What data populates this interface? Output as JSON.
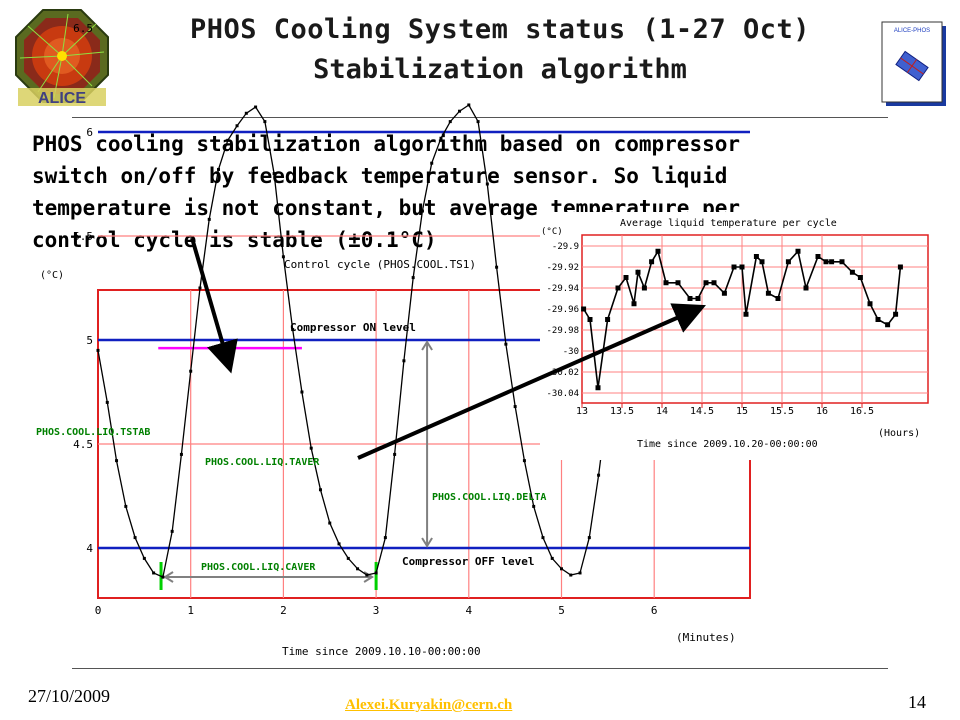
{
  "slide": {
    "title_line1": "PHOS Cooling System status (1-27 Oct)",
    "title_line2": "Stabilization algorithm",
    "body_lines": [
      "PHOS cooling stabilization algorithm based on compressor",
      "switch on/off by feedback temperature sensor. So liquid",
      "temperature is not constant, but average temperature per",
      "control cycle is stable (±0.1°C)"
    ],
    "footer_date": "27/10/2009",
    "footer_email": "Alexei.Kuryakin@cern.ch",
    "page_number": "14",
    "left_logo_text": "ALICE",
    "right_logo_text": "ALICE-PHOS"
  },
  "colors": {
    "main_frame": "#e02020",
    "grid_red": "#ff8080",
    "level_blue": "#1020c0",
    "tstab_magenta": "#ff00ff",
    "label_green": "#008000",
    "arrow": "#000000",
    "delta_gray": "#808080",
    "caver_green": "#00d000"
  },
  "chart_data": [
    {
      "type": "line",
      "title": "Control cycle (PHOS.COOL.TS1)",
      "ylabel": "(°C)",
      "xlabel": "Time since 2009.10.10-00:00:00",
      "xunit": "(Minutes)",
      "xlim": [
        0,
        7
      ],
      "ylim": [
        3.6,
        6.5
      ],
      "xticks": [
        "0",
        "1",
        "2",
        "3",
        "4",
        "5",
        "6"
      ],
      "yticks": [
        "4",
        "4.5",
        "5",
        "5.5",
        "6",
        "6.5"
      ],
      "levels": [
        {
          "name": "Compressor ON level",
          "value": 6
        },
        {
          "name": "Compressor OFF level",
          "value": 4
        },
        {
          "name": "PHOS.COOL.LIQ.TSTAB",
          "value": 5
        },
        {
          "name": "PHOS.COOL.LIQ.TAVER",
          "value": 4.98
        }
      ],
      "annotations": [
        "PHOS.COOL.LIQ.DELTA",
        "PHOS.COOL.LIQ.CAVER"
      ],
      "series": [
        {
          "x": [
            0,
            0.1,
            0.2,
            0.3,
            0.4,
            0.5,
            0.6,
            0.7,
            0.8,
            0.9,
            1.0,
            1.1,
            1.2,
            1.3,
            1.4,
            1.5,
            1.6,
            1.7,
            1.8,
            1.9,
            2.0,
            2.1,
            2.2,
            2.3,
            2.4,
            2.5,
            2.6,
            2.7,
            2.8,
            2.9,
            3.0,
            3.1,
            3.2,
            3.3,
            3.4,
            3.5,
            3.6,
            3.7,
            3.8,
            3.9,
            4.0,
            4.1,
            4.2,
            4.3,
            4.4,
            4.5,
            4.6,
            4.7,
            4.8,
            4.9,
            5.0,
            5.1,
            5.2,
            5.3,
            5.4,
            5.5,
            5.6,
            5.7
          ],
          "values": [
            4.95,
            4.7,
            4.42,
            4.2,
            4.05,
            3.95,
            3.88,
            3.86,
            4.08,
            4.45,
            4.85,
            5.25,
            5.58,
            5.82,
            5.96,
            6.03,
            6.09,
            6.12,
            6.05,
            5.8,
            5.4,
            5.05,
            4.75,
            4.48,
            4.28,
            4.12,
            4.02,
            3.95,
            3.9,
            3.87,
            3.88,
            4.05,
            4.45,
            4.9,
            5.3,
            5.62,
            5.85,
            5.97,
            6.05,
            6.1,
            6.13,
            6.05,
            5.75,
            5.35,
            4.98,
            4.68,
            4.42,
            4.2,
            4.05,
            3.95,
            3.9,
            3.87,
            3.88,
            4.05,
            4.35,
            4.7,
            5.05,
            5.4
          ]
        }
      ]
    },
    {
      "type": "line",
      "title": "Average liquid temperature per cycle",
      "ylabel": "(°C)",
      "xlabel": "Time since 2009.10.20-00:00:00",
      "xunit": "(Hours)",
      "xlim": [
        13,
        17
      ],
      "ylim": [
        -30.05,
        -29.89
      ],
      "xticks": [
        "13",
        "13.5",
        "14",
        "14.5",
        "15",
        "15.5",
        "16",
        "16.5"
      ],
      "yticks": [
        "-29.9",
        "-29.92",
        "-29.94",
        "-29.96",
        "-29.98",
        "-30",
        "-30.02",
        "-30.04"
      ],
      "series": [
        {
          "x": [
            13.02,
            13.1,
            13.2,
            13.32,
            13.45,
            13.55,
            13.65,
            13.7,
            13.78,
            13.87,
            13.95,
            14.05,
            14.2,
            14.35,
            14.45,
            14.55,
            14.65,
            14.78,
            14.9,
            15.0,
            15.05,
            15.18,
            15.25,
            15.33,
            15.45,
            15.58,
            15.7,
            15.8,
            15.95,
            16.05,
            16.12,
            16.25,
            16.38,
            16.48,
            16.6,
            16.7,
            16.82,
            16.92,
            16.98
          ],
          "values": [
            -29.96,
            -29.97,
            -30.035,
            -29.97,
            -29.94,
            -29.93,
            -29.955,
            -29.925,
            -29.94,
            -29.915,
            -29.905,
            -29.935,
            -29.935,
            -29.95,
            -29.95,
            -29.935,
            -29.935,
            -29.945,
            -29.92,
            -29.92,
            -29.965,
            -29.91,
            -29.915,
            -29.945,
            -29.95,
            -29.915,
            -29.905,
            -29.94,
            -29.91,
            -29.915,
            -29.915,
            -29.915,
            -29.925,
            -29.93,
            -29.955,
            -29.97,
            -29.975,
            -29.965,
            -29.92
          ]
        }
      ]
    }
  ]
}
